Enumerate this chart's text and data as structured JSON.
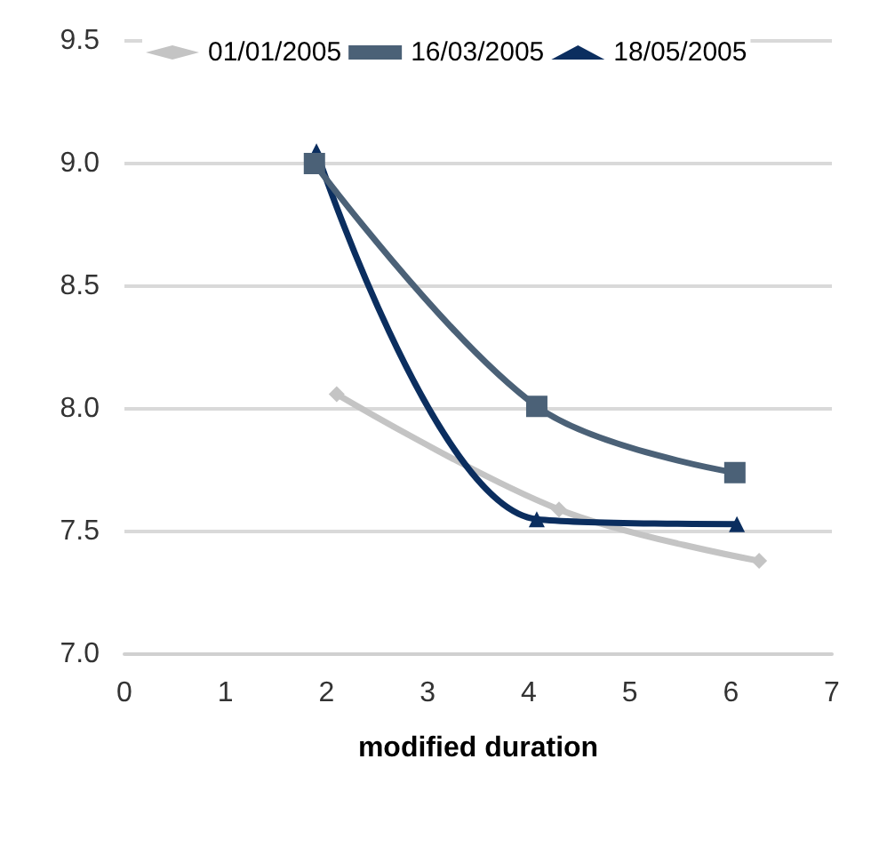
{
  "chart_data": {
    "type": "line",
    "xlabel": "modified duration",
    "xlim": [
      0,
      7
    ],
    "xticks": [
      0,
      1,
      2,
      3,
      4,
      5,
      6,
      7
    ],
    "ylim": [
      7.0,
      9.5
    ],
    "yticks": [
      {
        "value": 7.0,
        "label": "7.0"
      },
      {
        "value": 7.5,
        "label": "7.5"
      },
      {
        "value": 8.0,
        "label": "8.0"
      },
      {
        "value": 8.5,
        "label": "8.5"
      },
      {
        "value": 9.0,
        "label": "9.0"
      },
      {
        "value": 9.5,
        "label": "9.5"
      }
    ],
    "grid": "y",
    "legend": "top",
    "series": [
      {
        "name": "01/01/2005",
        "color": "#c4c4c4",
        "marker": "diamond",
        "x": [
          2.1,
          4.3,
          6.28
        ],
        "values": [
          8.06,
          7.59,
          7.38
        ]
      },
      {
        "name": "16/03/2005",
        "color": "#4b6177",
        "marker": "square",
        "x": [
          1.88,
          4.08,
          6.04
        ],
        "values": [
          9.0,
          8.01,
          7.74
        ]
      },
      {
        "name": "18/05/2005",
        "color": "#0b2e5f",
        "marker": "triangle",
        "x": [
          1.9,
          4.08,
          6.06
        ],
        "values": [
          9.05,
          7.55,
          7.53
        ]
      }
    ]
  }
}
